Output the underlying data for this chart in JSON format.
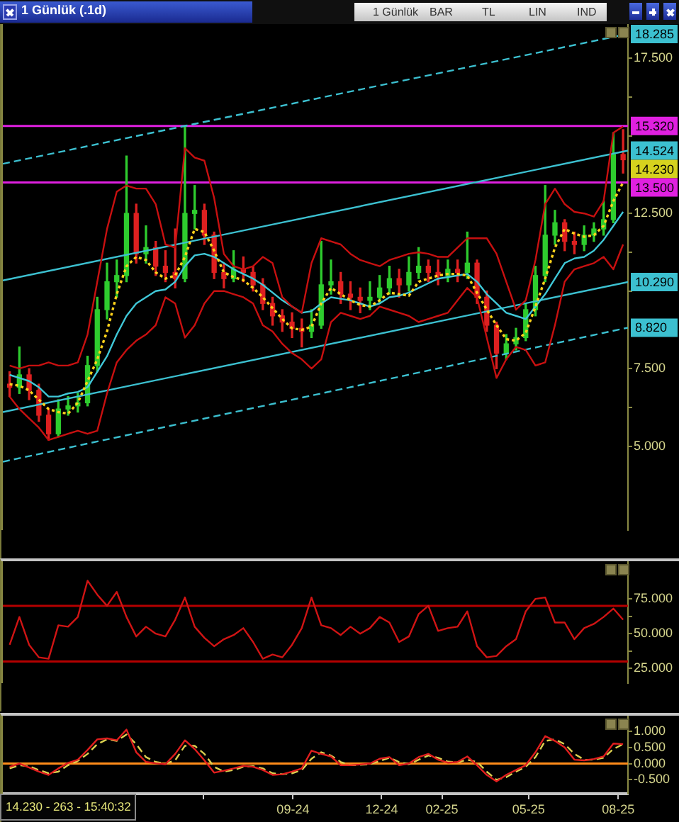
{
  "chart_data": [
    {
      "type": "candlestick",
      "title": "1 Günlük (.1d)",
      "annotations": [
        "1 Günlük",
        "BAR",
        "TL",
        "LIN",
        "IND",
        {
          "text": "14.230",
          "x": "2025-08-06",
          "y": 14.23
        }
      ],
      "x": [
        "2023-11-15",
        "2023-11-25",
        "2023-12-05",
        "2023-12-15",
        "2023-12-25",
        "2024-01-04",
        "2024-01-14",
        "2024-01-24",
        "2024-02-03",
        "2024-02-13",
        "2024-02-23",
        "2024-03-04",
        "2024-03-14",
        "2024-03-24",
        "2024-04-03",
        "2024-04-13",
        "2024-04-23",
        "2024-05-03",
        "2024-05-13",
        "2024-05-23",
        "2024-06-02",
        "2024-06-12",
        "2024-06-22",
        "2024-07-02",
        "2024-07-12",
        "2024-07-22",
        "2024-08-01",
        "2024-08-11",
        "2024-08-21",
        "2024-08-31",
        "2024-09-10",
        "2024-09-20",
        "2024-09-30",
        "2024-10-10",
        "2024-10-20",
        "2024-10-30",
        "2024-11-09",
        "2024-11-19",
        "2024-11-29",
        "2024-12-09",
        "2024-12-19",
        "2024-12-29",
        "2025-01-08",
        "2025-01-18",
        "2025-01-28",
        "2025-02-07",
        "2025-02-17",
        "2025-02-27",
        "2025-03-09",
        "2025-03-19",
        "2025-03-29",
        "2025-04-08",
        "2025-04-18",
        "2025-04-28",
        "2025-05-08",
        "2025-05-18",
        "2025-05-28",
        "2025-06-07",
        "2025-06-17",
        "2025-06-27",
        "2025-07-07",
        "2025-07-17",
        "2025-07-27",
        "2025-08-06"
      ],
      "ohlc": [
        [
          7.0,
          7.4,
          6.6,
          6.9
        ],
        [
          6.9,
          8.2,
          6.7,
          7.3
        ],
        [
          7.3,
          7.5,
          6.5,
          6.8
        ],
        [
          6.8,
          7.0,
          5.8,
          6.0
        ],
        [
          6.0,
          6.2,
          5.2,
          5.4
        ],
        [
          5.4,
          6.5,
          5.3,
          6.2
        ],
        [
          6.2,
          6.6,
          6.0,
          6.3
        ],
        [
          6.3,
          6.7,
          6.1,
          6.4
        ],
        [
          6.4,
          7.9,
          6.3,
          7.6
        ],
        [
          7.6,
          9.8,
          7.4,
          9.4
        ],
        [
          9.4,
          10.9,
          9.1,
          10.3
        ],
        [
          10.3,
          11.0,
          9.8,
          10.5
        ],
        [
          10.5,
          14.35,
          10.3,
          12.5
        ],
        [
          12.5,
          12.8,
          10.9,
          11.2
        ],
        [
          11.2,
          12.1,
          10.9,
          11.4
        ],
        [
          11.4,
          11.6,
          10.5,
          10.8
        ],
        [
          10.8,
          11.3,
          10.3,
          10.6
        ],
        [
          10.6,
          12.0,
          10.1,
          10.4
        ],
        [
          10.4,
          15.3,
          10.3,
          12.5
        ],
        [
          12.5,
          13.4,
          12.0,
          12.6
        ],
        [
          12.6,
          12.8,
          11.5,
          11.8
        ],
        [
          11.8,
          11.9,
          10.4,
          10.6
        ],
        [
          10.6,
          10.9,
          10.1,
          10.4
        ],
        [
          10.4,
          11.3,
          10.3,
          10.7
        ],
        [
          10.7,
          11.1,
          10.3,
          10.6
        ],
        [
          10.6,
          10.8,
          10.0,
          10.2
        ],
        [
          10.2,
          10.4,
          9.4,
          9.6
        ],
        [
          9.6,
          9.8,
          8.9,
          9.2
        ],
        [
          9.2,
          9.4,
          8.7,
          9.0
        ],
        [
          9.0,
          9.3,
          8.5,
          8.8
        ],
        [
          8.8,
          9.1,
          8.2,
          8.7
        ],
        [
          8.7,
          9.4,
          8.5,
          8.9
        ],
        [
          8.9,
          11.6,
          8.8,
          10.2
        ],
        [
          10.2,
          11.0,
          9.9,
          10.3
        ],
        [
          10.3,
          10.6,
          9.6,
          9.9
        ],
        [
          9.9,
          10.3,
          9.4,
          9.8
        ],
        [
          9.8,
          10.1,
          9.3,
          9.7
        ],
        [
          9.7,
          10.3,
          9.4,
          9.8
        ],
        [
          9.8,
          10.5,
          9.6,
          10.1
        ],
        [
          10.1,
          10.8,
          9.9,
          10.4
        ],
        [
          10.4,
          10.7,
          9.8,
          10.2
        ],
        [
          10.2,
          11.1,
          10.0,
          10.6
        ],
        [
          10.6,
          11.4,
          10.4,
          10.8
        ],
        [
          10.8,
          11.0,
          10.3,
          10.6
        ],
        [
          10.6,
          11.0,
          10.2,
          10.5
        ],
        [
          10.5,
          11.0,
          10.3,
          10.7
        ],
        [
          10.7,
          11.0,
          10.3,
          10.6
        ],
        [
          10.6,
          11.9,
          10.4,
          10.9
        ],
        [
          10.9,
          11.0,
          9.6,
          9.8
        ],
        [
          9.8,
          10.0,
          8.7,
          8.9
        ],
        [
          8.9,
          9.0,
          7.5,
          8.0
        ],
        [
          8.0,
          8.6,
          7.8,
          8.3
        ],
        [
          8.3,
          8.8,
          8.1,
          8.5
        ],
        [
          8.5,
          9.6,
          8.4,
          9.4
        ],
        [
          9.4,
          10.8,
          9.2,
          10.5
        ],
        [
          10.5,
          13.4,
          10.3,
          11.8
        ],
        [
          11.8,
          12.6,
          11.5,
          12.2
        ],
        [
          12.2,
          12.3,
          11.3,
          11.6
        ],
        [
          11.6,
          11.9,
          11.2,
          11.5
        ],
        [
          11.5,
          12.1,
          11.3,
          11.8
        ],
        [
          11.8,
          12.2,
          11.6,
          12.0
        ],
        [
          12.0,
          12.9,
          11.8,
          12.3
        ],
        [
          12.3,
          15.1,
          12.2,
          14.4
        ],
        [
          14.4,
          15.2,
          13.8,
          14.23
        ]
      ],
      "colors": [
        "#dd2020",
        "#2ecc2e",
        "#dd2020",
        "#dd2020",
        "#dd2020",
        "#2ecc2e",
        "#2ecc2e",
        "#2ecc2e",
        "#2ecc2e",
        "#2ecc2e",
        "#2ecc2e",
        "#2ecc2e",
        "#2ecc2e",
        "#dd2020",
        "#2ecc2e",
        "#dd2020",
        "#dd2020",
        "#dd2020",
        "#2ecc2e",
        "#2ecc2e",
        "#dd2020",
        "#dd2020",
        "#dd2020",
        "#2ecc2e",
        "#dd2020",
        "#dd2020",
        "#dd2020",
        "#dd2020",
        "#dd2020",
        "#dd2020",
        "#dd2020",
        "#2ecc2e",
        "#2ecc2e",
        "#2ecc2e",
        "#dd2020",
        "#dd2020",
        "#dd2020",
        "#2ecc2e",
        "#2ecc2e",
        "#2ecc2e",
        "#dd2020",
        "#2ecc2e",
        "#2ecc2e",
        "#dd2020",
        "#dd2020",
        "#2ecc2e",
        "#dd2020",
        "#2ecc2e",
        "#dd2020",
        "#dd2020",
        "#dd2020",
        "#2ecc2e",
        "#2ecc2e",
        "#2ecc2e",
        "#2ecc2e",
        "#2ecc2e",
        "#2ecc2e",
        "#dd2020",
        "#dd2020",
        "#2ecc2e",
        "#2ecc2e",
        "#2ecc2e",
        "#2ecc2e",
        "#dd2020"
      ],
      "series": [
        {
          "type": "line",
          "color": "#c81010",
          "values": [
            7.6,
            7.5,
            7.6,
            7.6,
            7.7,
            7.6,
            7.6,
            7.7,
            8.6,
            10.3,
            12.0,
            13.2,
            13.4,
            13.3,
            13.3,
            12.8,
            11.5,
            11.4,
            14.6,
            14.3,
            14.2,
            13.0,
            11.2,
            10.8,
            10.7,
            10.8,
            11.1,
            10.9,
            9.8,
            9.5,
            9.3,
            10.9,
            11.7,
            11.6,
            11.5,
            11.2,
            11.0,
            10.9,
            10.8,
            11.0,
            11.1,
            11.2,
            11.25,
            11.2,
            11.1,
            11.1,
            11.4,
            11.7,
            11.7,
            11.7,
            11.2,
            10.3,
            9.4,
            9.7,
            11.0,
            12.8,
            13.3,
            12.8,
            12.55,
            12.5,
            12.4,
            12.9,
            15.1,
            15.3
          ]
        },
        {
          "type": "line",
          "color": "#c81010",
          "values": [
            6.6,
            6.2,
            5.9,
            5.6,
            5.2,
            5.3,
            5.4,
            5.5,
            5.4,
            5.5,
            6.7,
            7.7,
            8.1,
            8.4,
            8.6,
            8.9,
            9.8,
            9.6,
            8.5,
            8.9,
            9.6,
            10.0,
            10.0,
            9.9,
            9.8,
            9.6,
            8.9,
            8.7,
            8.3,
            8.0,
            7.8,
            7.5,
            7.8,
            9.0,
            9.3,
            9.2,
            9.1,
            9.2,
            9.5,
            9.4,
            9.3,
            9.2,
            9.0,
            9.1,
            9.2,
            9.3,
            9.7,
            10.1,
            9.8,
            8.5,
            7.2,
            7.8,
            8.2,
            8.1,
            7.6,
            7.7,
            8.9,
            10.3,
            10.7,
            10.8,
            10.9,
            11.1,
            10.7,
            11.5
          ]
        },
        {
          "type": "line",
          "color": "#ffd21a",
          "line_style": "dotted",
          "values": [
            7.0,
            6.95,
            6.8,
            6.5,
            6.2,
            6.1,
            6.05,
            6.4,
            7.1,
            7.8,
            8.7,
            9.9,
            10.8,
            11.1,
            11.0,
            10.6,
            10.4,
            10.5,
            11.1,
            12.0,
            11.9,
            11.3,
            10.6,
            10.45,
            10.35,
            10.1,
            9.8,
            9.45,
            9.1,
            8.8,
            8.75,
            8.85,
            9.6,
            10.1,
            9.9,
            9.7,
            9.55,
            9.5,
            9.7,
            9.95,
            9.9,
            9.85,
            10.3,
            10.4,
            10.5,
            10.55,
            10.55,
            10.5,
            9.95,
            9.4,
            8.9,
            8.45,
            8.4,
            8.65,
            9.5,
            10.4,
            11.4,
            12.0,
            11.85,
            11.75,
            11.8,
            12.1,
            12.9,
            13.5
          ]
        },
        {
          "type": "line",
          "color": "#40c8d8",
          "values": [
            7.3,
            7.2,
            7.1,
            6.9,
            6.6,
            6.6,
            6.7,
            6.75,
            6.9,
            7.4,
            7.9,
            8.6,
            9.2,
            9.6,
            9.8,
            10.0,
            10.05,
            10.3,
            10.8,
            11.15,
            11.2,
            11.1,
            10.9,
            10.7,
            10.55,
            10.4,
            10.2,
            9.95,
            9.7,
            9.5,
            9.3,
            9.35,
            9.6,
            9.8,
            9.75,
            9.7,
            9.6,
            9.5,
            9.6,
            9.8,
            9.85,
            9.95,
            10.1,
            10.25,
            10.4,
            10.45,
            10.5,
            10.55,
            10.3,
            9.9,
            9.6,
            9.3,
            9.2,
            9.1,
            9.5,
            9.9,
            10.4,
            10.9,
            11.05,
            11.1,
            11.3,
            11.65,
            12.1,
            12.55
          ]
        },
        {
          "type": "line",
          "color": "#3cc0d0",
          "line_style": "dashed",
          "x": [
            "2023-11-08",
            "2025-08-11"
          ],
          "values": [
            14.1,
            18.285
          ],
          "value_labels": [
            null,
            "18.285"
          ]
        },
        {
          "type": "line",
          "color": "#3cc0d0",
          "x": [
            "2023-11-08",
            "2025-08-11"
          ],
          "values": [
            10.34,
            14.524
          ],
          "value_labels": [
            null,
            "14.524"
          ]
        },
        {
          "type": "line",
          "color": "#3cc0d0",
          "x": [
            "2023-11-08",
            "2025-08-11"
          ],
          "values": [
            6.1,
            10.29
          ],
          "value_labels": [
            null,
            "10.290"
          ]
        },
        {
          "type": "line",
          "color": "#3cc0d0",
          "line_style": "dashed",
          "x": [
            "2023-11-08",
            "2025-08-11"
          ],
          "values": [
            4.5,
            8.82
          ],
          "value_labels": [
            null,
            "8.820"
          ]
        }
      ],
      "ref_lines": [
        {
          "axis": "y",
          "value": 15.32,
          "label": "15.320",
          "color": "#e020e0"
        },
        {
          "axis": "y",
          "value": 13.5,
          "label": "13.500",
          "color": "#e020e0"
        }
      ],
      "xlim": [
        "2023-11-08",
        "2025-08-11"
      ],
      "ylim": [
        2.3,
        18.6
      ],
      "yticks": [
        {
          "value": 5,
          "label": "5.000"
        },
        {
          "value": 6.25,
          "label": null
        },
        {
          "value": 7.5,
          "label": "7.500"
        },
        {
          "value": 10,
          "label": null
        },
        {
          "value": 11.25,
          "label": null
        },
        {
          "value": 12.5,
          "label": "12.500"
        },
        {
          "value": 15,
          "label": null
        },
        {
          "value": 16.25,
          "label": null
        },
        {
          "value": 17.5,
          "label": "17.500"
        }
      ],
      "tick_labels": "y"
    },
    {
      "type": "line",
      "x": [
        "2023-11-15",
        "2023-11-25",
        "2023-12-05",
        "2023-12-15",
        "2023-12-25",
        "2024-01-04",
        "2024-01-14",
        "2024-01-24",
        "2024-02-03",
        "2024-02-13",
        "2024-02-23",
        "2024-03-04",
        "2024-03-14",
        "2024-03-24",
        "2024-04-03",
        "2024-04-13",
        "2024-04-23",
        "2024-05-03",
        "2024-05-13",
        "2024-05-23",
        "2024-06-02",
        "2024-06-12",
        "2024-06-22",
        "2024-07-02",
        "2024-07-12",
        "2024-07-22",
        "2024-08-01",
        "2024-08-11",
        "2024-08-21",
        "2024-08-31",
        "2024-09-10",
        "2024-09-20",
        "2024-09-30",
        "2024-10-10",
        "2024-10-20",
        "2024-10-30",
        "2024-11-09",
        "2024-11-19",
        "2024-11-29",
        "2024-12-09",
        "2024-12-19",
        "2024-12-29",
        "2025-01-08",
        "2025-01-18",
        "2025-01-28",
        "2025-02-07",
        "2025-02-17",
        "2025-02-27",
        "2025-03-09",
        "2025-03-19",
        "2025-03-29",
        "2025-04-08",
        "2025-04-18",
        "2025-04-28",
        "2025-05-08",
        "2025-05-18",
        "2025-05-28",
        "2025-06-07",
        "2025-06-17",
        "2025-06-27",
        "2025-07-07",
        "2025-07-17",
        "2025-07-27",
        "2025-08-06"
      ],
      "series": [
        {
          "color": "#d01414",
          "values": [
            42,
            62,
            42,
            33,
            32,
            56,
            55,
            62,
            88,
            78,
            70,
            80,
            62,
            48,
            55,
            50,
            48,
            60,
            76,
            55,
            47,
            41,
            46,
            49,
            54,
            44,
            32,
            35,
            33,
            42,
            54,
            76,
            56,
            54,
            49,
            55,
            50,
            54,
            62,
            58,
            44,
            48,
            64,
            70,
            52,
            54,
            55,
            66,
            41,
            33,
            34,
            41,
            46,
            66,
            75,
            76,
            58,
            58,
            46,
            54,
            57,
            62,
            68,
            60
          ]
        }
      ],
      "ref_lines": [
        {
          "axis": "y",
          "value": 70,
          "color": "#b40000"
        },
        {
          "axis": "y",
          "value": 30,
          "color": "#b40000"
        }
      ],
      "xlim": [
        "2023-11-08",
        "2025-08-11"
      ],
      "ylim": [
        14.5,
        102
      ],
      "yticks": [
        {
          "value": 25,
          "label": "25.000"
        },
        {
          "value": 37.5,
          "label": null
        },
        {
          "value": 50,
          "label": "50.000"
        },
        {
          "value": 62.5,
          "label": null
        },
        {
          "value": 75,
          "label": "75.000"
        }
      ],
      "tick_labels": "y"
    },
    {
      "type": "line",
      "annotations": [
        "14.230 - 263 - 15:40:32"
      ],
      "x": [
        "2023-11-15",
        "2023-11-25",
        "2023-12-05",
        "2023-12-15",
        "2023-12-25",
        "2024-01-04",
        "2024-01-14",
        "2024-01-24",
        "2024-02-03",
        "2024-02-13",
        "2024-02-23",
        "2024-03-04",
        "2024-03-14",
        "2024-03-24",
        "2024-04-03",
        "2024-04-13",
        "2024-04-23",
        "2024-05-03",
        "2024-05-13",
        "2024-05-23",
        "2024-06-02",
        "2024-06-12",
        "2024-06-22",
        "2024-07-02",
        "2024-07-12",
        "2024-07-22",
        "2024-08-01",
        "2024-08-11",
        "2024-08-21",
        "2024-08-31",
        "2024-09-10",
        "2024-09-20",
        "2024-09-30",
        "2024-10-10",
        "2024-10-20",
        "2024-10-30",
        "2024-11-09",
        "2024-11-19",
        "2024-11-29",
        "2024-12-09",
        "2024-12-19",
        "2024-12-29",
        "2025-01-08",
        "2025-01-18",
        "2025-01-28",
        "2025-02-07",
        "2025-02-17",
        "2025-02-27",
        "2025-03-09",
        "2025-03-19",
        "2025-03-29",
        "2025-04-08",
        "2025-04-18",
        "2025-04-28",
        "2025-05-08",
        "2025-05-18",
        "2025-05-28",
        "2025-06-07",
        "2025-06-17",
        "2025-06-27",
        "2025-07-07",
        "2025-07-17",
        "2025-07-27",
        "2025-08-06"
      ],
      "series": [
        {
          "color": "#e01e1e",
          "values": [
            -0.1,
            0.0,
            -0.12,
            -0.25,
            -0.35,
            -0.15,
            0.02,
            0.12,
            0.42,
            0.75,
            0.78,
            0.72,
            1.05,
            0.35,
            0.05,
            0.01,
            -0.02,
            0.3,
            0.72,
            0.45,
            0.1,
            -0.28,
            -0.22,
            -0.15,
            -0.07,
            -0.1,
            -0.2,
            -0.35,
            -0.33,
            -0.25,
            -0.15,
            0.4,
            0.3,
            0.22,
            -0.05,
            -0.05,
            -0.03,
            0.0,
            0.15,
            0.2,
            -0.05,
            0.0,
            0.2,
            0.3,
            0.12,
            0.03,
            0.05,
            0.22,
            -0.05,
            -0.35,
            -0.55,
            -0.35,
            -0.2,
            -0.05,
            0.35,
            0.85,
            0.7,
            0.5,
            0.12,
            0.1,
            0.14,
            0.22,
            0.62,
            0.6
          ]
        },
        {
          "color": "#dcd050",
          "line_style": "dashed",
          "values": [
            -0.15,
            -0.05,
            -0.08,
            -0.2,
            -0.3,
            -0.25,
            -0.05,
            0.08,
            0.3,
            0.6,
            0.75,
            0.7,
            0.9,
            0.6,
            0.2,
            0.05,
            0.0,
            0.1,
            0.55,
            0.55,
            0.3,
            -0.1,
            -0.25,
            -0.2,
            -0.1,
            -0.08,
            -0.15,
            -0.3,
            -0.33,
            -0.3,
            -0.2,
            0.15,
            0.35,
            0.25,
            0.05,
            -0.05,
            -0.04,
            -0.02,
            0.08,
            0.18,
            0.05,
            -0.02,
            0.12,
            0.25,
            0.18,
            0.06,
            0.04,
            0.12,
            0.05,
            -0.25,
            -0.5,
            -0.42,
            -0.25,
            -0.1,
            0.2,
            0.7,
            0.75,
            0.6,
            0.3,
            0.12,
            0.12,
            0.18,
            0.45,
            0.6
          ]
        }
      ],
      "ref_lines": [
        {
          "axis": "y",
          "value": 0,
          "color": "#ff8c1a"
        }
      ],
      "xlim": [
        "2023-11-08",
        "2025-08-11"
      ],
      "xticks": [
        {
          "value": "2024-06-01",
          "label": null
        },
        {
          "value": "2024-09-01",
          "label": "09-24"
        },
        {
          "value": "2024-12-01",
          "label": "12-24"
        },
        {
          "value": "2025-02-01",
          "label": "02-25"
        },
        {
          "value": "2025-05-01",
          "label": "05-25"
        },
        {
          "value": "2025-08-01",
          "label": "08-25"
        }
      ],
      "ylim": [
        -0.93,
        1.48
      ],
      "yticks": [
        {
          "value": -0.5,
          "label": "-0.500"
        },
        {
          "value": 0,
          "label": "0.000"
        },
        {
          "value": 0.5,
          "label": "0.500"
        },
        {
          "value": 1,
          "label": "1.000"
        }
      ]
    }
  ]
}
